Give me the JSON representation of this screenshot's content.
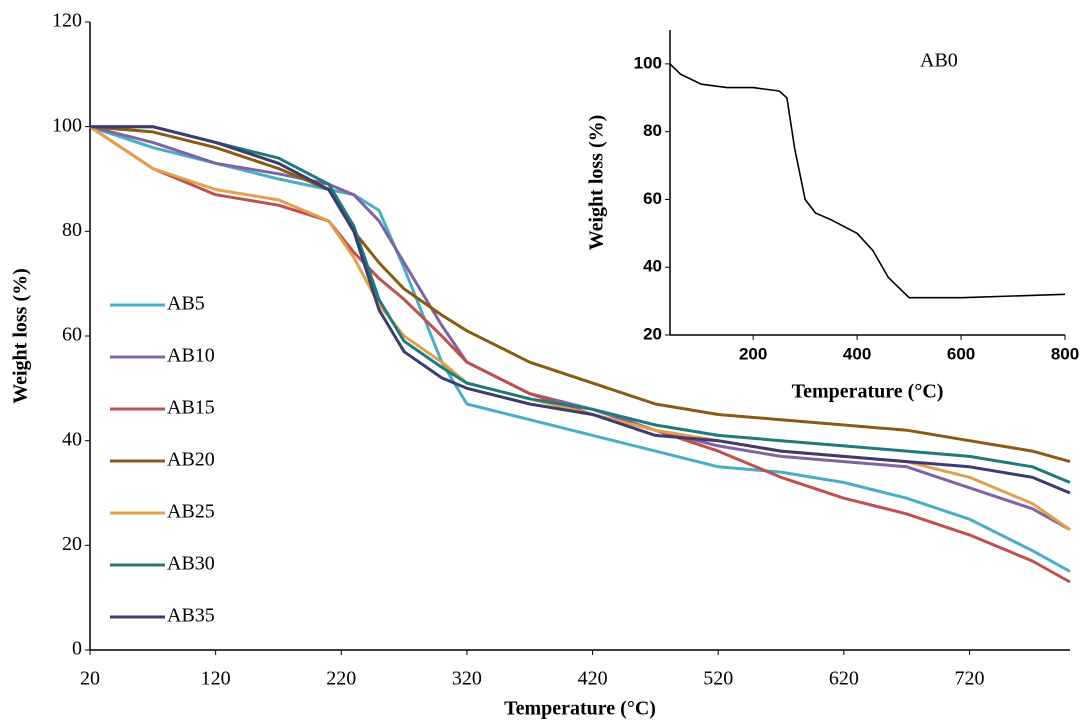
{
  "chart_data": [
    {
      "type": "line",
      "xlabel": "Temperature (°C)",
      "ylabel": "Weight loss (%)",
      "x": [
        20,
        70,
        120,
        170,
        210,
        230,
        250,
        270,
        300,
        320,
        370,
        420,
        470,
        520,
        570,
        620,
        670,
        720,
        770,
        800
      ],
      "series": [
        {
          "name": "AB5",
          "color": "#4bacc6",
          "values": [
            100,
            96,
            93,
            90,
            88,
            87,
            84,
            73,
            55,
            47,
            44,
            41,
            38,
            35,
            34,
            32,
            29,
            25,
            19,
            15
          ]
        },
        {
          "name": "AB10",
          "color": "#8064a2",
          "values": [
            100,
            97,
            93,
            91,
            89,
            87,
            82,
            74,
            62,
            55,
            49,
            46,
            42,
            39,
            37,
            36,
            35,
            31,
            27,
            23
          ]
        },
        {
          "name": "AB15",
          "color": "#c0504d",
          "values": [
            100,
            92,
            87,
            85,
            82,
            76,
            71,
            67,
            60,
            55,
            49,
            45,
            42,
            38,
            33,
            29,
            26,
            22,
            17,
            13
          ]
        },
        {
          "name": "AB20",
          "color": "#8b5a14",
          "values": [
            100,
            99,
            96,
            92,
            88,
            80,
            74,
            69,
            64,
            61,
            55,
            51,
            47,
            45,
            44,
            43,
            42,
            40,
            38,
            36
          ]
        },
        {
          "name": "AB25",
          "color": "#e0a050",
          "values": [
            100,
            92,
            88,
            86,
            82,
            75,
            66,
            60,
            55,
            51,
            48,
            45,
            42,
            40,
            38,
            37,
            36,
            33,
            28,
            23
          ]
        },
        {
          "name": "AB30",
          "color": "#1f7a7a",
          "values": [
            100,
            100,
            97,
            94,
            89,
            81,
            67,
            59,
            54,
            51,
            48,
            46,
            43,
            41,
            40,
            39,
            38,
            37,
            35,
            32
          ]
        },
        {
          "name": "AB35",
          "color": "#3c3c6e",
          "values": [
            100,
            100,
            97,
            93,
            88,
            80,
            65,
            57,
            52,
            50,
            47,
            45,
            41,
            40,
            38,
            37,
            36,
            35,
            33,
            30
          ]
        }
      ],
      "xlim": [
        20,
        800
      ],
      "ylim": [
        0,
        120
      ],
      "xticks": [
        20,
        120,
        220,
        320,
        420,
        520,
        620,
        720
      ],
      "yticks": [
        0,
        20,
        40,
        60,
        80,
        100,
        120
      ]
    },
    {
      "type": "line",
      "xlabel": "Temperature (°C)",
      "ylabel": "Weight loss (%)",
      "annotation": "AB0",
      "x": [
        40,
        60,
        100,
        150,
        200,
        250,
        265,
        280,
        300,
        320,
        350,
        400,
        430,
        460,
        500,
        600,
        700,
        800
      ],
      "series": [
        {
          "color": "#000000",
          "values": [
            100,
            97,
            94,
            93,
            93,
            92,
            90,
            75,
            60,
            56,
            54,
            50,
            45,
            37,
            31,
            31,
            31.5,
            32
          ]
        }
      ],
      "xlim": [
        40,
        800
      ],
      "ylim": [
        20,
        110
      ],
      "xticks": [
        200,
        400,
        600,
        800
      ],
      "yticks": [
        20,
        40,
        60,
        80,
        100
      ]
    }
  ]
}
